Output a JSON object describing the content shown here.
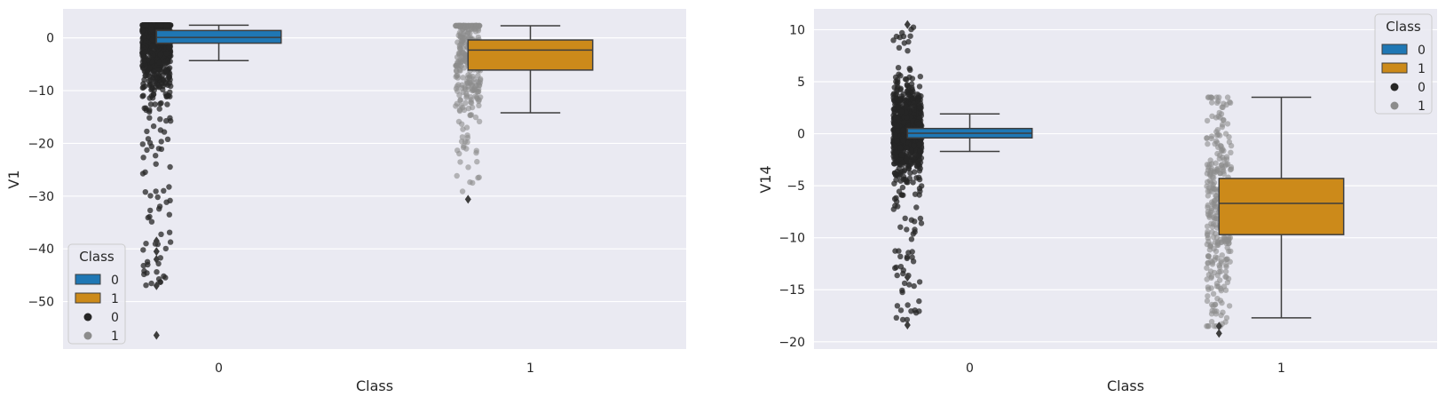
{
  "chart_data": [
    {
      "type": "box",
      "xlabel": "Class",
      "ylabel": "V1",
      "categories": [
        "0",
        "1"
      ],
      "ylim": [
        -59,
        5.5
      ],
      "yticks": [
        0,
        -10,
        -20,
        -30,
        -40,
        -50
      ],
      "grid": true,
      "legend": {
        "title": "Class",
        "placement": "lower-left",
        "entries": [
          "0",
          "1",
          "0",
          "1"
        ]
      },
      "series": [
        {
          "name": "0",
          "color": "#1f77b4",
          "q1": -1.0,
          "median": 0.1,
          "q3": 1.4,
          "whisker_low": -4.3,
          "whisker_high": 2.4,
          "strip_min": -47,
          "strip_max": 2.4,
          "outliers": [
            -38.5,
            -40.5,
            -42,
            -47,
            -56.4
          ]
        },
        {
          "name": "1",
          "color": "#cc8a1a",
          "q1": -6.1,
          "median": -2.3,
          "q3": -0.4,
          "whisker_low": -14.2,
          "whisker_high": 2.3,
          "strip_min": -30.5,
          "strip_max": 2.3,
          "outliers": [
            -30.6
          ]
        }
      ],
      "strip_colors": {
        "0": "#262626",
        "1": "#8c8c8c"
      }
    },
    {
      "type": "box",
      "xlabel": "Class",
      "ylabel": "V14",
      "categories": [
        "0",
        "1"
      ],
      "ylim": [
        -20.7,
        12
      ],
      "yticks": [
        10,
        5,
        0,
        -5,
        -10,
        -15,
        -20
      ],
      "grid": true,
      "legend": {
        "title": "Class",
        "placement": "upper-right",
        "entries": [
          "0",
          "1",
          "0",
          "1"
        ]
      },
      "series": [
        {
          "name": "0",
          "color": "#1f77b4",
          "q1": -0.4,
          "median": 0.05,
          "q3": 0.5,
          "whisker_low": -1.7,
          "whisker_high": 1.9,
          "strip_min": -18.4,
          "strip_max": 10.5,
          "outliers": [
            10.5,
            -13.8,
            -18.4
          ]
        },
        {
          "name": "1",
          "color": "#cc8a1a",
          "q1": -9.7,
          "median": -6.7,
          "q3": -4.3,
          "whisker_low": -17.7,
          "whisker_high": 3.5,
          "strip_min": -18.5,
          "strip_max": 3.5,
          "outliers": [
            -18.5,
            -19.2
          ]
        }
      ],
      "strip_colors": {
        "0": "#262626",
        "1": "#8c8c8c"
      }
    }
  ]
}
